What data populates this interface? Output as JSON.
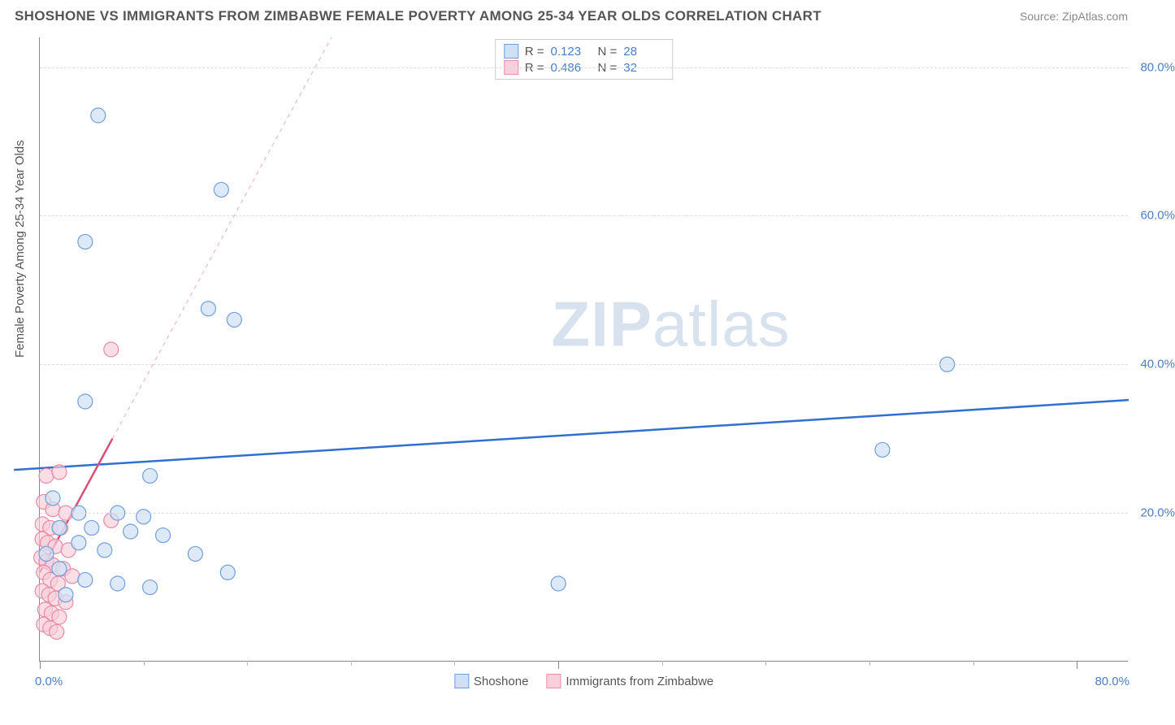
{
  "header": {
    "title": "SHOSHONE VS IMMIGRANTS FROM ZIMBABWE FEMALE POVERTY AMONG 25-34 YEAR OLDS CORRELATION CHART",
    "source": "Source: ZipAtlas.com"
  },
  "chart": {
    "type": "scatter",
    "y_axis_label": "Female Poverty Among 25-34 Year Olds",
    "watermark": {
      "bold": "ZIP",
      "light": "atlas"
    },
    "background_color": "#ffffff",
    "grid_color": "#dddddd",
    "axis_color": "#888888",
    "tick_label_color": "#4a7fc5",
    "xlim": [
      0,
      84
    ],
    "ylim": [
      0,
      84
    ],
    "x_ticks_major": [
      0,
      40,
      80
    ],
    "x_tick_labels": {
      "0": "0.0%",
      "80": "80.0%"
    },
    "x_ticks_minor": [
      8,
      16,
      24,
      32,
      48,
      56,
      64,
      72
    ],
    "y_ticks": [
      20,
      40,
      60,
      80
    ],
    "y_tick_labels": {
      "20": "20.0%",
      "40": "40.0%",
      "60": "60.0%",
      "80": "80.0%"
    },
    "legend_top": [
      {
        "swatch_fill": "#cfe0f4",
        "swatch_border": "#6fa0dd",
        "r_label": "R =",
        "r_value": "0.123",
        "n_label": "N =",
        "n_value": "28"
      },
      {
        "swatch_fill": "#f7d0db",
        "swatch_border": "#e890aa",
        "r_label": "R =",
        "r_value": "0.486",
        "n_label": "N =",
        "n_value": "32"
      }
    ],
    "legend_bottom": [
      {
        "swatch_fill": "#cfe0f4",
        "swatch_border": "#6fa0dd",
        "label": "Shoshone"
      },
      {
        "swatch_fill": "#f7d0db",
        "swatch_border": "#e890aa",
        "label": "Immigrants from Zimbabwe"
      }
    ],
    "series": [
      {
        "name": "Shoshone",
        "marker_radius": 9,
        "marker_fill": "#cfe0f4",
        "marker_fill_opacity": 0.7,
        "marker_stroke": "#6fa0dd",
        "marker_stroke_width": 1.2,
        "trendline": {
          "x1": -2,
          "y1": 25.8,
          "x2": 84,
          "y2": 35.2,
          "color": "#2f6fd0",
          "width": 2.5,
          "dash": "none"
        },
        "points": [
          [
            4.5,
            73.5
          ],
          [
            14.0,
            63.5
          ],
          [
            3.5,
            56.5
          ],
          [
            13.0,
            47.5
          ],
          [
            15.0,
            46.0
          ],
          [
            70.0,
            40.0
          ],
          [
            3.5,
            35.0
          ],
          [
            65.0,
            28.5
          ],
          [
            8.5,
            25.0
          ],
          [
            1.0,
            22.0
          ],
          [
            3.0,
            20.0
          ],
          [
            6.0,
            20.0
          ],
          [
            8.0,
            19.5
          ],
          [
            1.5,
            18.0
          ],
          [
            4.0,
            18.0
          ],
          [
            7.0,
            17.5
          ],
          [
            9.5,
            17.0
          ],
          [
            3.0,
            16.0
          ],
          [
            5.0,
            15.0
          ],
          [
            12.0,
            14.5
          ],
          [
            14.5,
            12.0
          ],
          [
            40.0,
            10.5
          ],
          [
            6.0,
            10.5
          ],
          [
            8.5,
            10.0
          ],
          [
            1.5,
            12.5
          ],
          [
            3.5,
            11.0
          ],
          [
            2.0,
            9.0
          ],
          [
            0.5,
            14.5
          ]
        ]
      },
      {
        "name": "Immigrants from Zimbabwe",
        "marker_radius": 9,
        "marker_fill": "#f7cdd9",
        "marker_fill_opacity": 0.65,
        "marker_stroke": "#e88aa5",
        "marker_stroke_width": 1.2,
        "trendline_solid": {
          "x1": 0,
          "y1": 12.0,
          "x2": 5.6,
          "y2": 30.0,
          "color": "#d94f77",
          "width": 2.5
        },
        "trendline_dashed": {
          "x1": 5.6,
          "y1": 30.0,
          "x2": 22.5,
          "y2": 84.0,
          "color": "#f0b7c6",
          "width": 1.2,
          "dash": "5,5"
        },
        "points": [
          [
            5.5,
            42.0
          ],
          [
            0.5,
            25.0
          ],
          [
            1.5,
            25.5
          ],
          [
            0.3,
            21.5
          ],
          [
            1.0,
            20.5
          ],
          [
            2.0,
            20.0
          ],
          [
            0.2,
            18.5
          ],
          [
            0.8,
            18.0
          ],
          [
            1.6,
            18.0
          ],
          [
            5.5,
            19.0
          ],
          [
            0.2,
            16.5
          ],
          [
            0.6,
            16.0
          ],
          [
            1.2,
            15.5
          ],
          [
            2.2,
            15.0
          ],
          [
            0.1,
            14.0
          ],
          [
            0.5,
            13.5
          ],
          [
            1.0,
            13.0
          ],
          [
            1.8,
            12.5
          ],
          [
            0.3,
            12.0
          ],
          [
            0.8,
            11.0
          ],
          [
            1.4,
            10.5
          ],
          [
            2.5,
            11.5
          ],
          [
            0.2,
            9.5
          ],
          [
            0.7,
            9.0
          ],
          [
            1.2,
            8.5
          ],
          [
            2.0,
            8.0
          ],
          [
            0.4,
            7.0
          ],
          [
            0.9,
            6.5
          ],
          [
            1.5,
            6.0
          ],
          [
            0.3,
            5.0
          ],
          [
            0.8,
            4.5
          ],
          [
            1.3,
            4.0
          ]
        ]
      }
    ]
  }
}
